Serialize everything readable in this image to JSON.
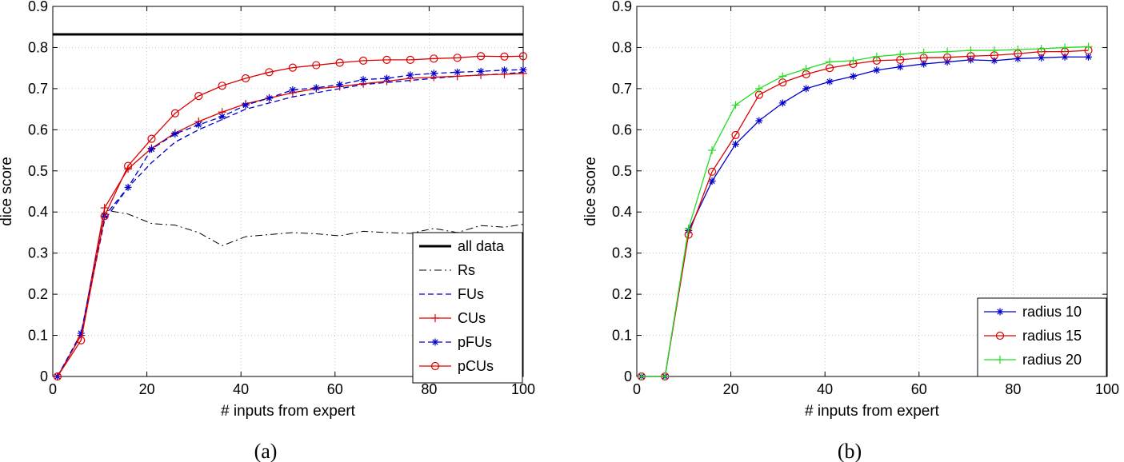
{
  "chart_data": [
    {
      "type": "line",
      "caption": "(a)",
      "xlabel": "# inputs from expert",
      "ylabel": "dice score",
      "xlim": [
        0,
        100
      ],
      "ylim": [
        0,
        0.9
      ],
      "xticks": [
        0,
        20,
        40,
        60,
        80,
        100
      ],
      "yticks": [
        0,
        0.1,
        0.2,
        0.3,
        0.4,
        0.5,
        0.6,
        0.7,
        0.8,
        0.9
      ],
      "grid": true,
      "legend_position": "bottom-right",
      "series": [
        {
          "name": "all data",
          "color": "#000000",
          "style": "solid",
          "width": 3,
          "marker": "none",
          "x": [
            0,
            100
          ],
          "y": [
            0.832,
            0.832
          ]
        },
        {
          "name": "Rs",
          "color": "#000000",
          "style": "dashdot",
          "width": 1,
          "marker": "none",
          "x": [
            1,
            6,
            11,
            16,
            21,
            26,
            31,
            36,
            41,
            46,
            51,
            56,
            61,
            66,
            71,
            76,
            81,
            86,
            91,
            96,
            100
          ],
          "y": [
            0.0,
            0.1,
            0.405,
            0.395,
            0.372,
            0.368,
            0.35,
            0.318,
            0.34,
            0.345,
            0.35,
            0.347,
            0.342,
            0.353,
            0.35,
            0.348,
            0.36,
            0.35,
            0.367,
            0.363,
            0.37
          ]
        },
        {
          "name": "FUs",
          "color": "#0000cc",
          "style": "dashed",
          "width": 1.3,
          "marker": "none",
          "x": [
            1,
            6,
            11,
            16,
            21,
            26,
            31,
            36,
            41,
            46,
            51,
            56,
            61,
            66,
            71,
            76,
            81,
            86,
            91,
            96,
            100
          ],
          "y": [
            0.0,
            0.1,
            0.38,
            0.46,
            0.52,
            0.57,
            0.6,
            0.625,
            0.65,
            0.665,
            0.68,
            0.69,
            0.7,
            0.71,
            0.715,
            0.72,
            0.725,
            0.73,
            0.733,
            0.736,
            0.74
          ]
        },
        {
          "name": "CUs",
          "color": "#dd0000",
          "style": "solid",
          "width": 1.3,
          "marker": "plus",
          "x": [
            1,
            6,
            11,
            16,
            21,
            26,
            31,
            36,
            41,
            46,
            51,
            56,
            61,
            66,
            71,
            76,
            81,
            86,
            91,
            96,
            100
          ],
          "y": [
            0.0,
            0.1,
            0.41,
            0.505,
            0.555,
            0.592,
            0.62,
            0.643,
            0.663,
            0.677,
            0.69,
            0.7,
            0.705,
            0.712,
            0.718,
            0.725,
            0.728,
            0.73,
            0.733,
            0.735,
            0.737
          ]
        },
        {
          "name": "pFUs",
          "color": "#0000cc",
          "style": "dashed",
          "width": 1.3,
          "marker": "star",
          "x": [
            1,
            6,
            11,
            16,
            21,
            26,
            31,
            36,
            41,
            46,
            51,
            56,
            61,
            66,
            71,
            76,
            81,
            86,
            91,
            96,
            100
          ],
          "y": [
            0.0,
            0.105,
            0.39,
            0.46,
            0.553,
            0.59,
            0.612,
            0.632,
            0.66,
            0.677,
            0.697,
            0.702,
            0.71,
            0.722,
            0.725,
            0.733,
            0.737,
            0.74,
            0.742,
            0.745,
            0.746
          ]
        },
        {
          "name": "pCUs",
          "color": "#dd0000",
          "style": "solid",
          "width": 1.3,
          "marker": "circle",
          "x": [
            1,
            6,
            11,
            16,
            21,
            26,
            31,
            36,
            41,
            46,
            51,
            56,
            61,
            66,
            71,
            76,
            81,
            86,
            91,
            96,
            100
          ],
          "y": [
            0.0,
            0.088,
            0.39,
            0.512,
            0.578,
            0.64,
            0.682,
            0.707,
            0.725,
            0.74,
            0.751,
            0.757,
            0.763,
            0.768,
            0.77,
            0.77,
            0.773,
            0.775,
            0.779,
            0.778,
            0.779
          ]
        }
      ]
    },
    {
      "type": "line",
      "caption": "(b)",
      "xlabel": "# inputs from expert",
      "ylabel": "dice score",
      "xlim": [
        0,
        100
      ],
      "ylim": [
        0,
        0.9
      ],
      "xticks": [
        0,
        20,
        40,
        60,
        80,
        100
      ],
      "yticks": [
        0,
        0.1,
        0.2,
        0.3,
        0.4,
        0.5,
        0.6,
        0.7,
        0.8,
        0.9
      ],
      "grid": true,
      "legend_position": "bottom-right",
      "series": [
        {
          "name": "radius 10",
          "color": "#0000cc",
          "style": "solid",
          "width": 1.3,
          "marker": "star",
          "x": [
            1,
            6,
            11,
            16,
            21,
            26,
            31,
            36,
            41,
            46,
            51,
            56,
            61,
            66,
            71,
            76,
            81,
            86,
            91,
            96
          ],
          "y": [
            0.0,
            0.0,
            0.355,
            0.475,
            0.565,
            0.622,
            0.665,
            0.7,
            0.717,
            0.73,
            0.745,
            0.753,
            0.76,
            0.765,
            0.77,
            0.768,
            0.773,
            0.775,
            0.777,
            0.777
          ]
        },
        {
          "name": "radius 15",
          "color": "#dd0000",
          "style": "solid",
          "width": 1.3,
          "marker": "circle",
          "x": [
            1,
            6,
            11,
            16,
            21,
            26,
            31,
            36,
            41,
            46,
            51,
            56,
            61,
            66,
            71,
            76,
            81,
            86,
            91,
            96
          ],
          "y": [
            0.0,
            0.0,
            0.345,
            0.498,
            0.587,
            0.685,
            0.715,
            0.735,
            0.75,
            0.76,
            0.768,
            0.77,
            0.775,
            0.776,
            0.779,
            0.781,
            0.785,
            0.79,
            0.79,
            0.793
          ]
        },
        {
          "name": "radius 20",
          "color": "#22dd22",
          "style": "solid",
          "width": 1.3,
          "marker": "plus",
          "x": [
            1,
            6,
            11,
            16,
            21,
            26,
            31,
            36,
            41,
            46,
            51,
            56,
            61,
            66,
            71,
            76,
            81,
            86,
            91,
            96
          ],
          "y": [
            0.0,
            0.0,
            0.36,
            0.55,
            0.66,
            0.7,
            0.73,
            0.748,
            0.765,
            0.768,
            0.778,
            0.783,
            0.788,
            0.79,
            0.793,
            0.793,
            0.795,
            0.797,
            0.8,
            0.802
          ]
        }
      ]
    }
  ]
}
